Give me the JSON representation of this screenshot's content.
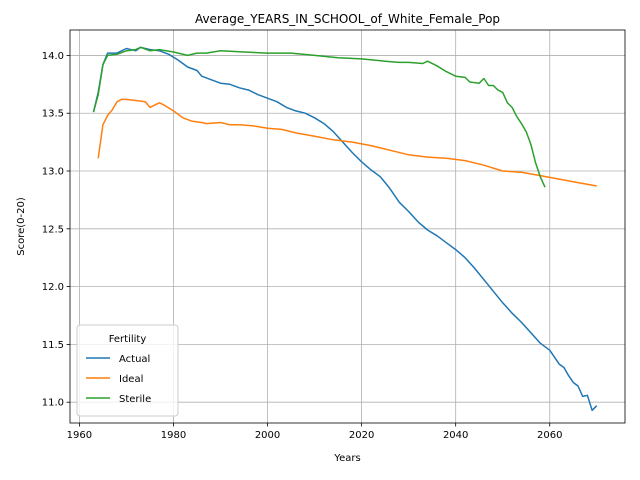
{
  "chart_data": {
    "type": "line",
    "title": "Average_YEARS_IN_SCHOOL_of_White_Female_Pop",
    "xlabel": "Years",
    "ylabel": "Score(0-20)",
    "xlim": [
      1958,
      2076
    ],
    "ylim": [
      10.82,
      14.22
    ],
    "xticks": [
      1960,
      1980,
      2000,
      2020,
      2040,
      2060
    ],
    "yticks": [
      11.0,
      11.5,
      12.0,
      12.5,
      13.0,
      13.5,
      14.0
    ],
    "xtick_labels": [
      "1960",
      "1980",
      "2000",
      "2020",
      "2040",
      "2060"
    ],
    "ytick_labels": [
      "11.0",
      "11.5",
      "12.0",
      "12.5",
      "13.0",
      "13.5",
      "14.0"
    ],
    "grid": true,
    "legend": {
      "title": "Fertility",
      "position": "lower-left"
    },
    "series": [
      {
        "name": "Actual",
        "color": "#1f77b4",
        "x": [
          1963,
          1964,
          1965,
          1966,
          1968,
          1970,
          1972,
          1973,
          1975,
          1977,
          1979,
          1981,
          1983,
          1985,
          1986,
          1988,
          1990,
          1992,
          1994,
          1996,
          1998,
          2000,
          2002,
          2004,
          2006,
          2008,
          2010,
          2012,
          2014,
          2016,
          2018,
          2020,
          2022,
          2024,
          2026,
          2028,
          2030,
          2032,
          2034,
          2036,
          2038,
          2040,
          2042,
          2044,
          2046,
          2048,
          2050,
          2052,
          2054,
          2056,
          2058,
          2060,
          2061,
          2062,
          2063,
          2064,
          2065,
          2066,
          2067,
          2068,
          2069,
          2070
        ],
        "values": [
          13.51,
          13.68,
          13.92,
          14.02,
          14.02,
          14.06,
          14.04,
          14.07,
          14.05,
          14.04,
          14.01,
          13.96,
          13.9,
          13.87,
          13.82,
          13.79,
          13.76,
          13.75,
          13.72,
          13.7,
          13.66,
          13.63,
          13.6,
          13.55,
          13.52,
          13.5,
          13.46,
          13.41,
          13.34,
          13.25,
          13.16,
          13.08,
          13.01,
          12.95,
          12.85,
          12.73,
          12.65,
          12.56,
          12.49,
          12.44,
          12.38,
          12.32,
          12.25,
          12.16,
          12.06,
          11.96,
          11.86,
          11.77,
          11.69,
          11.6,
          11.51,
          11.45,
          11.39,
          11.33,
          11.3,
          11.23,
          11.17,
          11.14,
          11.05,
          11.06,
          10.93,
          10.97
        ]
      },
      {
        "name": "Ideal",
        "color": "#ff7f0e",
        "x": [
          1964,
          1965,
          1966,
          1967,
          1968,
          1969,
          1970,
          1972,
          1974,
          1975,
          1976,
          1977,
          1978,
          1980,
          1982,
          1984,
          1986,
          1987,
          1990,
          1992,
          1994,
          1997,
          2000,
          2003,
          2006,
          2010,
          2014,
          2018,
          2022,
          2026,
          2030,
          2034,
          2038,
          2042,
          2046,
          2050,
          2054,
          2058,
          2062,
          2066,
          2070
        ],
        "values": [
          13.11,
          13.4,
          13.48,
          13.53,
          13.6,
          13.62,
          13.62,
          13.61,
          13.6,
          13.55,
          13.57,
          13.59,
          13.57,
          13.52,
          13.46,
          13.43,
          13.42,
          13.41,
          13.42,
          13.4,
          13.4,
          13.39,
          13.37,
          13.36,
          13.33,
          13.3,
          13.27,
          13.25,
          13.22,
          13.18,
          13.14,
          13.12,
          13.11,
          13.09,
          13.05,
          13.0,
          12.99,
          12.96,
          12.93,
          12.9,
          12.87
        ]
      },
      {
        "name": "Sterile",
        "color": "#2ca02c",
        "x": [
          1963,
          1964,
          1965,
          1966,
          1968,
          1970,
          1972,
          1973,
          1975,
          1977,
          1980,
          1983,
          1985,
          1987,
          1990,
          1995,
          2000,
          2005,
          2010,
          2015,
          2020,
          2025,
          2028,
          2030,
          2033,
          2034,
          2036,
          2038,
          2040,
          2042,
          2043,
          2045,
          2046,
          2047,
          2048,
          2049,
          2050,
          2051,
          2052,
          2053,
          2054,
          2055,
          2056,
          2057,
          2058,
          2059
        ],
        "values": [
          13.51,
          13.66,
          13.92,
          14.0,
          14.01,
          14.04,
          14.05,
          14.07,
          14.04,
          14.05,
          14.03,
          14.0,
          14.02,
          14.02,
          14.04,
          14.03,
          14.02,
          14.02,
          14.0,
          13.98,
          13.97,
          13.95,
          13.94,
          13.94,
          13.93,
          13.95,
          13.91,
          13.86,
          13.82,
          13.81,
          13.77,
          13.76,
          13.8,
          13.74,
          13.74,
          13.7,
          13.68,
          13.59,
          13.55,
          13.47,
          13.41,
          13.34,
          13.23,
          13.07,
          12.95,
          12.86
        ]
      }
    ]
  }
}
